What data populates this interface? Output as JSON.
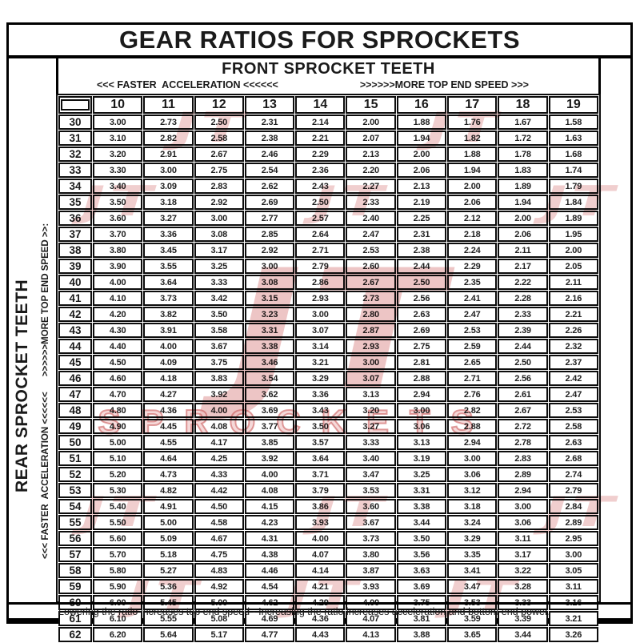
{
  "chart_data": {
    "type": "table",
    "title": "GEAR RATIOS FOR SPROCKETS",
    "x_axis_label": "FRONT SPROCKET TEETH",
    "y_axis_label": "REAR SPROCKET TEETH",
    "x_direction_labels": {
      "left": "<<< FASTER  ACCELERATION <<<<<<",
      "right": ">>>>>>MORE TOP END SPEED >>>"
    },
    "y_direction_label": "<<< FASTER  ACCELERATION <<<<<<      >>>>>>MORE TOP END SPEED >>:",
    "front_teeth": [
      "10",
      "11",
      "12",
      "13",
      "14",
      "15",
      "16",
      "17",
      "18",
      "19"
    ],
    "rows": [
      {
        "rear": "30",
        "ratios": [
          "3.00",
          "2.73",
          "2.50",
          "2.31",
          "2.14",
          "2.00",
          "1.88",
          "1.76",
          "1.67",
          "1.58"
        ]
      },
      {
        "rear": "31",
        "ratios": [
          "3.10",
          "2.82",
          "2.58",
          "2.38",
          "2.21",
          "2.07",
          "1.94",
          "1.82",
          "1.72",
          "1.63"
        ]
      },
      {
        "rear": "32",
        "ratios": [
          "3.20",
          "2.91",
          "2.67",
          "2.46",
          "2.29",
          "2.13",
          "2.00",
          "1.88",
          "1.78",
          "1.68"
        ]
      },
      {
        "rear": "33",
        "ratios": [
          "3.30",
          "3.00",
          "2.75",
          "2.54",
          "2.36",
          "2.20",
          "2.06",
          "1.94",
          "1.83",
          "1.74"
        ]
      },
      {
        "rear": "34",
        "ratios": [
          "3.40",
          "3.09",
          "2.83",
          "2.62",
          "2.43",
          "2.27",
          "2.13",
          "2.00",
          "1.89",
          "1.79"
        ]
      },
      {
        "rear": "35",
        "ratios": [
          "3.50",
          "3.18",
          "2.92",
          "2.69",
          "2.50",
          "2.33",
          "2.19",
          "2.06",
          "1.94",
          "1.84"
        ]
      },
      {
        "rear": "36",
        "ratios": [
          "3.60",
          "3.27",
          "3.00",
          "2.77",
          "2.57",
          "2.40",
          "2.25",
          "2.12",
          "2.00",
          "1.89"
        ]
      },
      {
        "rear": "37",
        "ratios": [
          "3.70",
          "3.36",
          "3.08",
          "2.85",
          "2.64",
          "2.47",
          "2.31",
          "2.18",
          "2.06",
          "1.95"
        ]
      },
      {
        "rear": "38",
        "ratios": [
          "3.80",
          "3.45",
          "3.17",
          "2.92",
          "2.71",
          "2.53",
          "2.38",
          "2.24",
          "2.11",
          "2.00"
        ]
      },
      {
        "rear": "39",
        "ratios": [
          "3.90",
          "3.55",
          "3.25",
          "3.00",
          "2.79",
          "2.60",
          "2.44",
          "2.29",
          "2.17",
          "2.05"
        ]
      },
      {
        "rear": "40",
        "ratios": [
          "4.00",
          "3.64",
          "3.33",
          "3.08",
          "2.86",
          "2.67",
          "2.50",
          "2.35",
          "2.22",
          "2.11"
        ]
      },
      {
        "rear": "41",
        "ratios": [
          "4.10",
          "3.73",
          "3.42",
          "3.15",
          "2.93",
          "2.73",
          "2.56",
          "2.41",
          "2.28",
          "2.16"
        ]
      },
      {
        "rear": "42",
        "ratios": [
          "4.20",
          "3.82",
          "3.50",
          "3.23",
          "3.00",
          "2.80",
          "2.63",
          "2.47",
          "2.33",
          "2.21"
        ]
      },
      {
        "rear": "43",
        "ratios": [
          "4.30",
          "3.91",
          "3.58",
          "3.31",
          "3.07",
          "2.87",
          "2.69",
          "2.53",
          "2.39",
          "2.26"
        ]
      },
      {
        "rear": "44",
        "ratios": [
          "4.40",
          "4.00",
          "3.67",
          "3.38",
          "3.14",
          "2.93",
          "2.75",
          "2.59",
          "2.44",
          "2.32"
        ]
      },
      {
        "rear": "45",
        "ratios": [
          "4.50",
          "4.09",
          "3.75",
          "3.46",
          "3.21",
          "3.00",
          "2.81",
          "2.65",
          "2.50",
          "2.37"
        ]
      },
      {
        "rear": "46",
        "ratios": [
          "4.60",
          "4.18",
          "3.83",
          "3.54",
          "3.29",
          "3.07",
          "2.88",
          "2.71",
          "2.56",
          "2.42"
        ]
      },
      {
        "rear": "47",
        "ratios": [
          "4.70",
          "4.27",
          "3.92",
          "3.62",
          "3.36",
          "3.13",
          "2.94",
          "2.76",
          "2.61",
          "2.47"
        ]
      },
      {
        "rear": "48",
        "ratios": [
          "4.80",
          "4.36",
          "4.00",
          "3.69",
          "3.43",
          "3.20",
          "3.00",
          "2.82",
          "2.67",
          "2.53"
        ]
      },
      {
        "rear": "49",
        "ratios": [
          "4.90",
          "4.45",
          "4.08",
          "3.77",
          "3.50",
          "3.27",
          "3.06",
          "2.88",
          "2.72",
          "2.58"
        ]
      },
      {
        "rear": "50",
        "ratios": [
          "5.00",
          "4.55",
          "4.17",
          "3.85",
          "3.57",
          "3.33",
          "3.13",
          "2.94",
          "2.78",
          "2.63"
        ]
      },
      {
        "rear": "51",
        "ratios": [
          "5.10",
          "4.64",
          "4.25",
          "3.92",
          "3.64",
          "3.40",
          "3.19",
          "3.00",
          "2.83",
          "2.68"
        ]
      },
      {
        "rear": "52",
        "ratios": [
          "5.20",
          "4.73",
          "4.33",
          "4.00",
          "3.71",
          "3.47",
          "3.25",
          "3.06",
          "2.89",
          "2.74"
        ]
      },
      {
        "rear": "53",
        "ratios": [
          "5.30",
          "4.82",
          "4.42",
          "4.08",
          "3.79",
          "3.53",
          "3.31",
          "3.12",
          "2.94",
          "2.79"
        ]
      },
      {
        "rear": "54",
        "ratios": [
          "5.40",
          "4.91",
          "4.50",
          "4.15",
          "3.86",
          "3.60",
          "3.38",
          "3.18",
          "3.00",
          "2.84"
        ]
      },
      {
        "rear": "55",
        "ratios": [
          "5.50",
          "5.00",
          "4.58",
          "4.23",
          "3.93",
          "3.67",
          "3.44",
          "3.24",
          "3.06",
          "2.89"
        ]
      },
      {
        "rear": "56",
        "ratios": [
          "5.60",
          "5.09",
          "4.67",
          "4.31",
          "4.00",
          "3.73",
          "3.50",
          "3.29",
          "3.11",
          "2.95"
        ]
      },
      {
        "rear": "57",
        "ratios": [
          "5.70",
          "5.18",
          "4.75",
          "4.38",
          "4.07",
          "3.80",
          "3.56",
          "3.35",
          "3.17",
          "3.00"
        ]
      },
      {
        "rear": "58",
        "ratios": [
          "5.80",
          "5.27",
          "4.83",
          "4.46",
          "4.14",
          "3.87",
          "3.63",
          "3.41",
          "3.22",
          "3.05"
        ]
      },
      {
        "rear": "59",
        "ratios": [
          "5.90",
          "5.36",
          "4.92",
          "4.54",
          "4.21",
          "3.93",
          "3.69",
          "3.47",
          "3.28",
          "3.11"
        ]
      },
      {
        "rear": "60",
        "ratios": [
          "6.00",
          "5.45",
          "5.00",
          "4.62",
          "4.29",
          "4.00",
          "3.75",
          "3.53",
          "3.33",
          "3.16"
        ]
      },
      {
        "rear": "61",
        "ratios": [
          "6.10",
          "5.55",
          "5.08",
          "4.69",
          "4.36",
          "4.07",
          "3.81",
          "3.59",
          "3.39",
          "3.21"
        ]
      },
      {
        "rear": "62",
        "ratios": [
          "6.20",
          "5.64",
          "5.17",
          "4.77",
          "4.43",
          "4.13",
          "3.88",
          "3.65",
          "3.44",
          "3.26"
        ]
      }
    ],
    "footnote": "Lowering the ratio increases top end speed - Increasing the ratio increases acceleration and bottom end power."
  },
  "watermark": {
    "monogram": "JT",
    "brand": "SPROCKETS",
    "color": "#c94e4e"
  }
}
